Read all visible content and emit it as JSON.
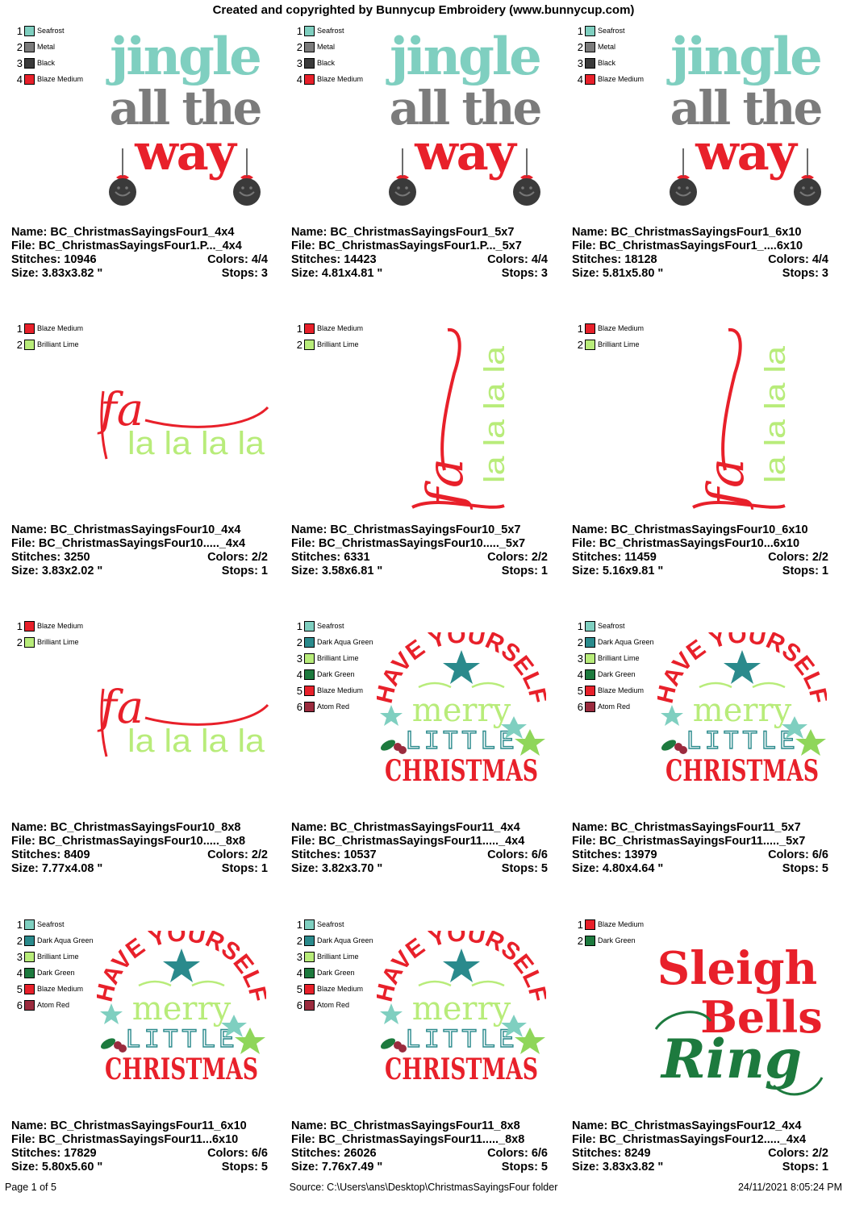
{
  "header": {
    "title": "Created and copyrighted by Bunnycup Embroidery (www.bunnycup.com)"
  },
  "colors": {
    "Seafrost": "#7fcfc0",
    "Metal": "#7b7b7b",
    "Black": "#3a3a3a",
    "Blaze Medium": "#e8202a",
    "Brilliant Lime": "#b8ec7a",
    "Dark Aqua Green": "#2a8a8c",
    "Dark Green": "#1d7a3e",
    "Atom Red": "#9b2b3e"
  },
  "designs": [
    {
      "art": "jingle",
      "legend": [
        {
          "num": "1",
          "name": "Seafrost",
          "color": "#7fcfc0"
        },
        {
          "num": "2",
          "name": "Metal",
          "color": "#7b7b7b"
        },
        {
          "num": "3",
          "name": "Black",
          "color": "#3a3a3a"
        },
        {
          "num": "4",
          "name": "Blaze Medium",
          "color": "#e8202a"
        }
      ],
      "name": "Name: BC_ChristmasSayingsFour1_4x4",
      "file": "File: BC_ChristmasSayingsFour1.P..._4x4",
      "stitches": "Stitches: 10946",
      "colors_count": "Colors: 4/4",
      "size": "Size: 3.83x3.82 \"",
      "stops": "Stops: 3"
    },
    {
      "art": "jingle",
      "legend": [
        {
          "num": "1",
          "name": "Seafrost",
          "color": "#7fcfc0"
        },
        {
          "num": "2",
          "name": "Metal",
          "color": "#7b7b7b"
        },
        {
          "num": "3",
          "name": "Black",
          "color": "#3a3a3a"
        },
        {
          "num": "4",
          "name": "Blaze Medium",
          "color": "#e8202a"
        }
      ],
      "name": "Name: BC_ChristmasSayingsFour1_5x7",
      "file": "File: BC_ChristmasSayingsFour1.P..._5x7",
      "stitches": "Stitches: 14423",
      "colors_count": "Colors: 4/4",
      "size": "Size: 4.81x4.81 \"",
      "stops": "Stops: 3"
    },
    {
      "art": "jingle",
      "legend": [
        {
          "num": "1",
          "name": "Seafrost",
          "color": "#7fcfc0"
        },
        {
          "num": "2",
          "name": "Metal",
          "color": "#7b7b7b"
        },
        {
          "num": "3",
          "name": "Black",
          "color": "#3a3a3a"
        },
        {
          "num": "4",
          "name": "Blaze Medium",
          "color": "#e8202a"
        }
      ],
      "name": "Name: BC_ChristmasSayingsFour1_6x10",
      "file": "File: BC_ChristmasSayingsFour1_....6x10",
      "stitches": "Stitches: 18128",
      "colors_count": "Colors: 4/4",
      "size": "Size: 5.81x5.80 \"",
      "stops": "Stops: 3"
    },
    {
      "art": "fa-h",
      "legend": [
        {
          "num": "1",
          "name": "Blaze Medium",
          "color": "#e8202a"
        },
        {
          "num": "2",
          "name": "Brilliant Lime",
          "color": "#b8ec7a"
        }
      ],
      "name": "Name: BC_ChristmasSayingsFour10_4x4",
      "file": "File: BC_ChristmasSayingsFour10....._4x4",
      "stitches": "Stitches: 3250",
      "colors_count": "Colors: 2/2",
      "size": "Size: 3.83x2.02 \"",
      "stops": "Stops: 1"
    },
    {
      "art": "fa-v",
      "legend": [
        {
          "num": "1",
          "name": "Blaze Medium",
          "color": "#e8202a"
        },
        {
          "num": "2",
          "name": "Brilliant Lime",
          "color": "#b8ec7a"
        }
      ],
      "name": "Name: BC_ChristmasSayingsFour10_5x7",
      "file": "File: BC_ChristmasSayingsFour10....._5x7",
      "stitches": "Stitches: 6331",
      "colors_count": "Colors: 2/2",
      "size": "Size: 3.58x6.81 \"",
      "stops": "Stops: 1"
    },
    {
      "art": "fa-v",
      "legend": [
        {
          "num": "1",
          "name": "Blaze Medium",
          "color": "#e8202a"
        },
        {
          "num": "2",
          "name": "Brilliant Lime",
          "color": "#b8ec7a"
        }
      ],
      "name": "Name: BC_ChristmasSayingsFour10_6x10",
      "file": "File: BC_ChristmasSayingsFour10...6x10",
      "stitches": "Stitches: 11459",
      "colors_count": "Colors: 2/2",
      "size": "Size: 5.16x9.81 \"",
      "stops": "Stops: 1"
    },
    {
      "art": "fa-h",
      "legend": [
        {
          "num": "1",
          "name": "Blaze Medium",
          "color": "#e8202a"
        },
        {
          "num": "2",
          "name": "Brilliant Lime",
          "color": "#b8ec7a"
        }
      ],
      "name": "Name: BC_ChristmasSayingsFour10_8x8",
      "file": "File: BC_ChristmasSayingsFour10....._8x8",
      "stitches": "Stitches: 8409",
      "colors_count": "Colors: 2/2",
      "size": "Size: 7.77x4.08 \"",
      "stops": "Stops: 1"
    },
    {
      "art": "merry",
      "legend": [
        {
          "num": "1",
          "name": "Seafrost",
          "color": "#7fcfc0"
        },
        {
          "num": "2",
          "name": "Dark Aqua Green",
          "color": "#2a8a8c"
        },
        {
          "num": "3",
          "name": "Brilliant Lime",
          "color": "#b8ec7a"
        },
        {
          "num": "4",
          "name": "Dark Green",
          "color": "#1d7a3e"
        },
        {
          "num": "5",
          "name": "Blaze Medium",
          "color": "#e8202a"
        },
        {
          "num": "6",
          "name": "Atom Red",
          "color": "#9b2b3e"
        }
      ],
      "name": "Name: BC_ChristmasSayingsFour11_4x4",
      "file": "File: BC_ChristmasSayingsFour11....._4x4",
      "stitches": "Stitches: 10537",
      "colors_count": "Colors: 6/6",
      "size": "Size: 3.82x3.70 \"",
      "stops": "Stops: 5"
    },
    {
      "art": "merry",
      "legend": [
        {
          "num": "1",
          "name": "Seafrost",
          "color": "#7fcfc0"
        },
        {
          "num": "2",
          "name": "Dark Aqua Green",
          "color": "#2a8a8c"
        },
        {
          "num": "3",
          "name": "Brilliant Lime",
          "color": "#b8ec7a"
        },
        {
          "num": "4",
          "name": "Dark Green",
          "color": "#1d7a3e"
        },
        {
          "num": "5",
          "name": "Blaze Medium",
          "color": "#e8202a"
        },
        {
          "num": "6",
          "name": "Atom Red",
          "color": "#9b2b3e"
        }
      ],
      "name": "Name: BC_ChristmasSayingsFour11_5x7",
      "file": "File: BC_ChristmasSayingsFour11....._5x7",
      "stitches": "Stitches: 13979",
      "colors_count": "Colors: 6/6",
      "size": "Size: 4.80x4.64 \"",
      "stops": "Stops: 5"
    },
    {
      "art": "merry",
      "legend": [
        {
          "num": "1",
          "name": "Seafrost",
          "color": "#7fcfc0"
        },
        {
          "num": "2",
          "name": "Dark Aqua Green",
          "color": "#2a8a8c"
        },
        {
          "num": "3",
          "name": "Brilliant Lime",
          "color": "#b8ec7a"
        },
        {
          "num": "4",
          "name": "Dark Green",
          "color": "#1d7a3e"
        },
        {
          "num": "5",
          "name": "Blaze Medium",
          "color": "#e8202a"
        },
        {
          "num": "6",
          "name": "Atom Red",
          "color": "#9b2b3e"
        }
      ],
      "name": "Name: BC_ChristmasSayingsFour11_6x10",
      "file": "File: BC_ChristmasSayingsFour11...6x10",
      "stitches": "Stitches: 17829",
      "colors_count": "Colors: 6/6",
      "size": "Size: 5.80x5.60 \"",
      "stops": "Stops: 5"
    },
    {
      "art": "merry",
      "legend": [
        {
          "num": "1",
          "name": "Seafrost",
          "color": "#7fcfc0"
        },
        {
          "num": "2",
          "name": "Dark Aqua Green",
          "color": "#2a8a8c"
        },
        {
          "num": "3",
          "name": "Brilliant Lime",
          "color": "#b8ec7a"
        },
        {
          "num": "4",
          "name": "Dark Green",
          "color": "#1d7a3e"
        },
        {
          "num": "5",
          "name": "Blaze Medium",
          "color": "#e8202a"
        },
        {
          "num": "6",
          "name": "Atom Red",
          "color": "#9b2b3e"
        }
      ],
      "name": "Name: BC_ChristmasSayingsFour11_8x8",
      "file": "File: BC_ChristmasSayingsFour11....._8x8",
      "stitches": "Stitches: 26026",
      "colors_count": "Colors: 6/6",
      "size": "Size: 7.76x7.49 \"",
      "stops": "Stops: 5"
    },
    {
      "art": "sleigh",
      "legend": [
        {
          "num": "1",
          "name": "Blaze Medium",
          "color": "#e8202a"
        },
        {
          "num": "2",
          "name": "Dark Green",
          "color": "#1d7a3e"
        }
      ],
      "name": "Name: BC_ChristmasSayingsFour12_4x4",
      "file": "File: BC_ChristmasSayingsFour12....._4x4",
      "stitches": "Stitches: 8249",
      "colors_count": "Colors: 2/2",
      "size": "Size: 3.83x3.82 \"",
      "stops": "Stops: 1"
    }
  ],
  "artwork": {
    "jingle": {
      "line1": "jingle",
      "line2": "all the",
      "line3": "way"
    },
    "fa": {
      "script": "fa",
      "la": "la la la la"
    },
    "merry": {
      "arc": "HAVE YOURSELF",
      "merry": "merry",
      "little": "LITTLE",
      "christmas": "CHRISTMAS"
    },
    "sleigh": {
      "w1": "Sleigh",
      "w2": "Bells",
      "w3": "Ring"
    }
  },
  "footer": {
    "page": "Page 1 of 5",
    "source": "Source: C:\\Users\\ans\\Desktop\\ChristmasSayingsFour folder",
    "datetime": "24/11/2021 8:05:24 PM"
  }
}
